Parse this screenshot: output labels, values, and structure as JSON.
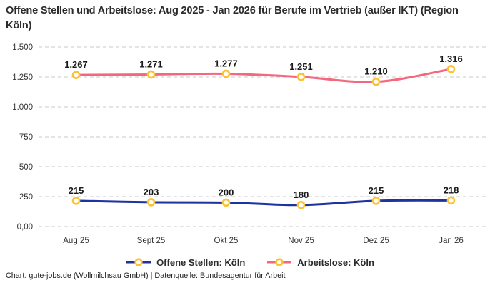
{
  "title": "Offene Stellen und Arbeitslose: Aug 2025 - Jan 2026 für Berufe im Vertrieb (außer IKT) (Region Köln)",
  "footer": "Chart: gute-jobs.de (Wollmilchsau GmbH) | Datenquelle: Bundesagentur für Arbeit",
  "colors": {
    "open_positions": "#1e339e",
    "unemployed": "#f4687f",
    "marker_ring": "#fdc230",
    "marker_fill": "#ffffff",
    "grid": "#c9c9c9",
    "label_text": "#1a1a1a",
    "axis_text": "#333333"
  },
  "chart_data": {
    "type": "line",
    "title": "Offene Stellen und Arbeitslose: Aug 2025 - Jan 2026 für Berufe im Vertrieb (außer IKT) (Region Köln)",
    "categories": [
      "Aug 25",
      "Sept 25",
      "Okt 25",
      "Nov 25",
      "Dez 25",
      "Jan 26"
    ],
    "series": [
      {
        "name": "Offene Stellen: Köln",
        "color_key": "open_positions",
        "values": [
          215,
          203,
          200,
          180,
          215,
          218
        ],
        "labels": [
          "215",
          "203",
          "200",
          "180",
          "215",
          "218"
        ]
      },
      {
        "name": "Arbeitslose: Köln",
        "color_key": "unemployed",
        "values": [
          1267,
          1271,
          1277,
          1251,
          1210,
          1316
        ],
        "labels": [
          "1.267",
          "1.271",
          "1.277",
          "1.251",
          "1.210",
          "1.316"
        ]
      }
    ],
    "xlabel": "",
    "ylabel": "",
    "ylim": [
      0,
      1500
    ],
    "yticks": [
      0,
      250,
      500,
      750,
      1000,
      1250,
      1500
    ],
    "ytick_labels": [
      "0,00",
      "250",
      "500",
      "750",
      "1.000",
      "1.250",
      "1.500"
    ],
    "grid": "horizontal-dashed",
    "legend_position": "bottom"
  }
}
